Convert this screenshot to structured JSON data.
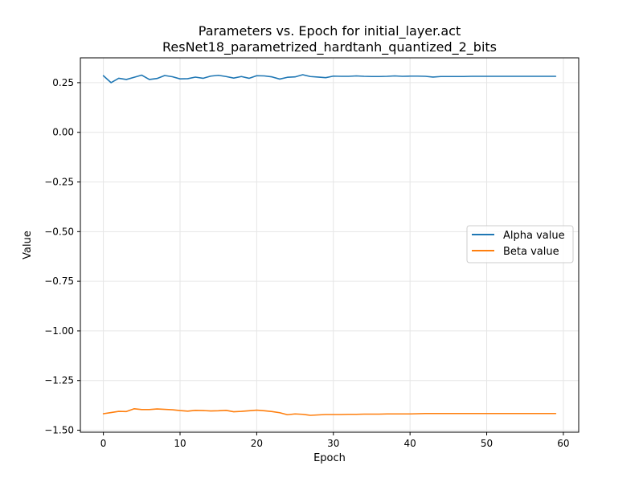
{
  "chart_data": {
    "type": "line",
    "title_line1": "Parameters vs. Epoch for initial_layer.act",
    "title_line2": "ResNet18_parametrized_hardtanh_quantized_2_bits",
    "xlabel": "Epoch",
    "ylabel": "Value",
    "xlim": [
      -3,
      62
    ],
    "ylim": [
      -1.51,
      0.375
    ],
    "xticks": [
      0,
      10,
      20,
      30,
      40,
      50,
      60
    ],
    "xtick_labels": [
      "0",
      "10",
      "20",
      "30",
      "40",
      "50",
      "60"
    ],
    "yticks": [
      0.25,
      0.0,
      -0.25,
      -0.5,
      -0.75,
      -1.0,
      -1.25,
      -1.5
    ],
    "ytick_labels": [
      "0.25",
      "0.00",
      "−0.25",
      "−0.50",
      "−0.75",
      "−1.00",
      "−1.25",
      "−1.50"
    ],
    "grid": true,
    "legend_position": "center-right",
    "x": [
      0,
      1,
      2,
      3,
      4,
      5,
      6,
      7,
      8,
      9,
      10,
      11,
      12,
      13,
      14,
      15,
      16,
      17,
      18,
      19,
      20,
      21,
      22,
      23,
      24,
      25,
      26,
      27,
      28,
      29,
      30,
      31,
      32,
      33,
      34,
      35,
      36,
      37,
      38,
      39,
      40,
      41,
      42,
      43,
      44,
      45,
      46,
      47,
      48,
      49,
      50,
      51,
      52,
      53,
      54,
      55,
      56,
      57,
      58,
      59
    ],
    "series": [
      {
        "name": "Alpha value",
        "color": "#1f77b4",
        "values": [
          0.285,
          0.25,
          0.272,
          0.266,
          0.277,
          0.288,
          0.266,
          0.271,
          0.286,
          0.28,
          0.269,
          0.27,
          0.278,
          0.272,
          0.283,
          0.287,
          0.281,
          0.273,
          0.281,
          0.272,
          0.285,
          0.284,
          0.279,
          0.268,
          0.277,
          0.279,
          0.29,
          0.281,
          0.278,
          0.275,
          0.283,
          0.282,
          0.282,
          0.284,
          0.282,
          0.281,
          0.281,
          0.282,
          0.284,
          0.282,
          0.283,
          0.283,
          0.282,
          0.278,
          0.281,
          0.281,
          0.281,
          0.281,
          0.282,
          0.282,
          0.282,
          0.282,
          0.282,
          0.282,
          0.282,
          0.282,
          0.282,
          0.282,
          0.282,
          0.282
        ]
      },
      {
        "name": "Beta value",
        "color": "#ff7f0e",
        "values": [
          -1.417,
          -1.411,
          -1.405,
          -1.406,
          -1.392,
          -1.396,
          -1.396,
          -1.393,
          -1.395,
          -1.397,
          -1.401,
          -1.404,
          -1.4,
          -1.401,
          -1.403,
          -1.402,
          -1.4,
          -1.407,
          -1.405,
          -1.402,
          -1.399,
          -1.402,
          -1.406,
          -1.412,
          -1.422,
          -1.418,
          -1.42,
          -1.425,
          -1.423,
          -1.421,
          -1.421,
          -1.421,
          -1.42,
          -1.42,
          -1.419,
          -1.419,
          -1.419,
          -1.418,
          -1.418,
          -1.418,
          -1.418,
          -1.417,
          -1.416,
          -1.416,
          -1.416,
          -1.416,
          -1.416,
          -1.416,
          -1.416,
          -1.416,
          -1.416,
          -1.416,
          -1.416,
          -1.416,
          -1.416,
          -1.416,
          -1.416,
          -1.416,
          -1.416,
          -1.416
        ]
      }
    ]
  }
}
